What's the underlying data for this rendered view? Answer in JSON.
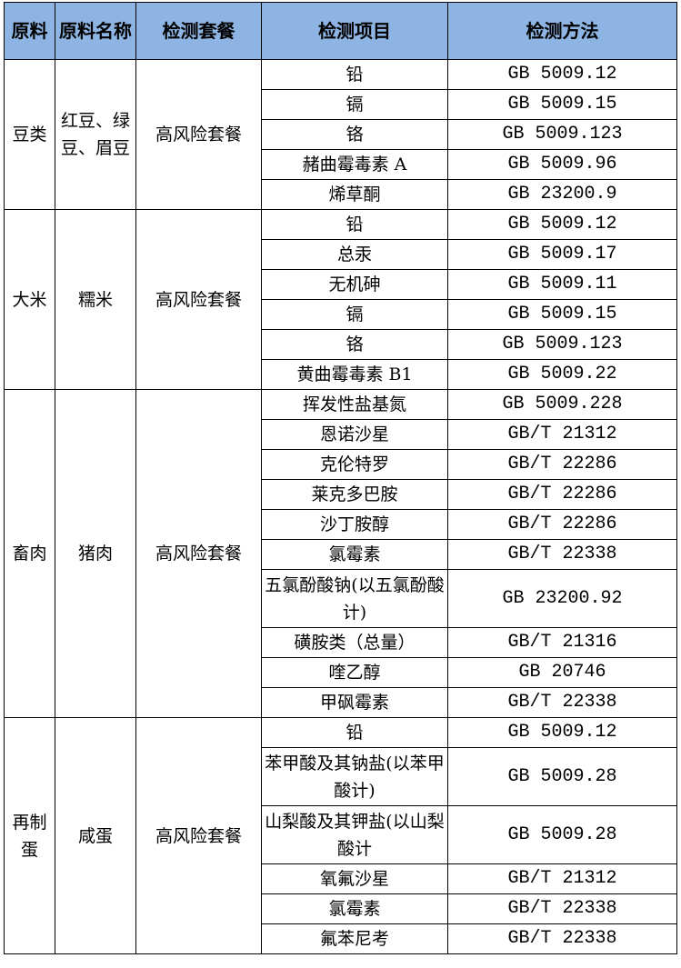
{
  "header_color": "#8db4e2",
  "headers": [
    "原料",
    "原料名称",
    "检测套餐",
    "检测项目",
    "检测方法"
  ],
  "groups": [
    {
      "material": "豆类",
      "name": "红豆、绿豆、眉豆",
      "package": "高风险套餐",
      "items": [
        {
          "item": "铅",
          "method": "GB 5009.12"
        },
        {
          "item": "镉",
          "method": "GB 5009.15"
        },
        {
          "item": "铬",
          "method": "GB 5009.123"
        },
        {
          "item": "赭曲霉毒素 A",
          "method": "GB 5009.96"
        },
        {
          "item": "烯草酮",
          "method": "GB 23200.9"
        }
      ]
    },
    {
      "material": "大米",
      "name": "糯米",
      "package": "高风险套餐",
      "items": [
        {
          "item": "铅",
          "method": "GB 5009.12"
        },
        {
          "item": "总汞",
          "method": "GB 5009.17"
        },
        {
          "item": "无机砷",
          "method": "GB 5009.11"
        },
        {
          "item": "镉",
          "method": "GB 5009.15"
        },
        {
          "item": "铬",
          "method": "GB 5009.123"
        },
        {
          "item": "黄曲霉毒素 B1",
          "method": "GB 5009.22"
        }
      ]
    },
    {
      "material": "畜肉",
      "name": "猪肉",
      "package": "高风险套餐",
      "items": [
        {
          "item": "挥发性盐基氮",
          "method": "GB 5009.228"
        },
        {
          "item": "恩诺沙星",
          "method": "GB/T 21312"
        },
        {
          "item": "克伦特罗",
          "method": "GB/T 22286"
        },
        {
          "item": "莱克多巴胺",
          "method": "GB/T 22286"
        },
        {
          "item": "沙丁胺醇",
          "method": "GB/T 22286"
        },
        {
          "item": "氯霉素",
          "method": "GB/T 22338"
        },
        {
          "item": "五氯酚酸钠(以五氯酚酸计)",
          "method": "GB 23200.92"
        },
        {
          "item": "磺胺类（总量）",
          "method": "GB/T 21316"
        },
        {
          "item": "喹乙醇",
          "method": "GB 20746"
        },
        {
          "item": "甲砜霉素",
          "method": "GB/T 22338"
        }
      ]
    },
    {
      "material": "再制蛋",
      "name": "咸蛋",
      "package": "高风险套餐",
      "items": [
        {
          "item": "铅",
          "method": "GB 5009.12"
        },
        {
          "item": "苯甲酸及其钠盐(以苯甲酸计)",
          "method": "GB 5009.28"
        },
        {
          "item": "山梨酸及其钾盐(以山梨酸计",
          "method": "GB 5009.28"
        },
        {
          "item": "氧氟沙星",
          "method": "GB/T 21312"
        },
        {
          "item": "氯霉素",
          "method": "GB/T 22338"
        },
        {
          "item": "氟苯尼考",
          "method": "GB/T 22338"
        }
      ]
    }
  ]
}
